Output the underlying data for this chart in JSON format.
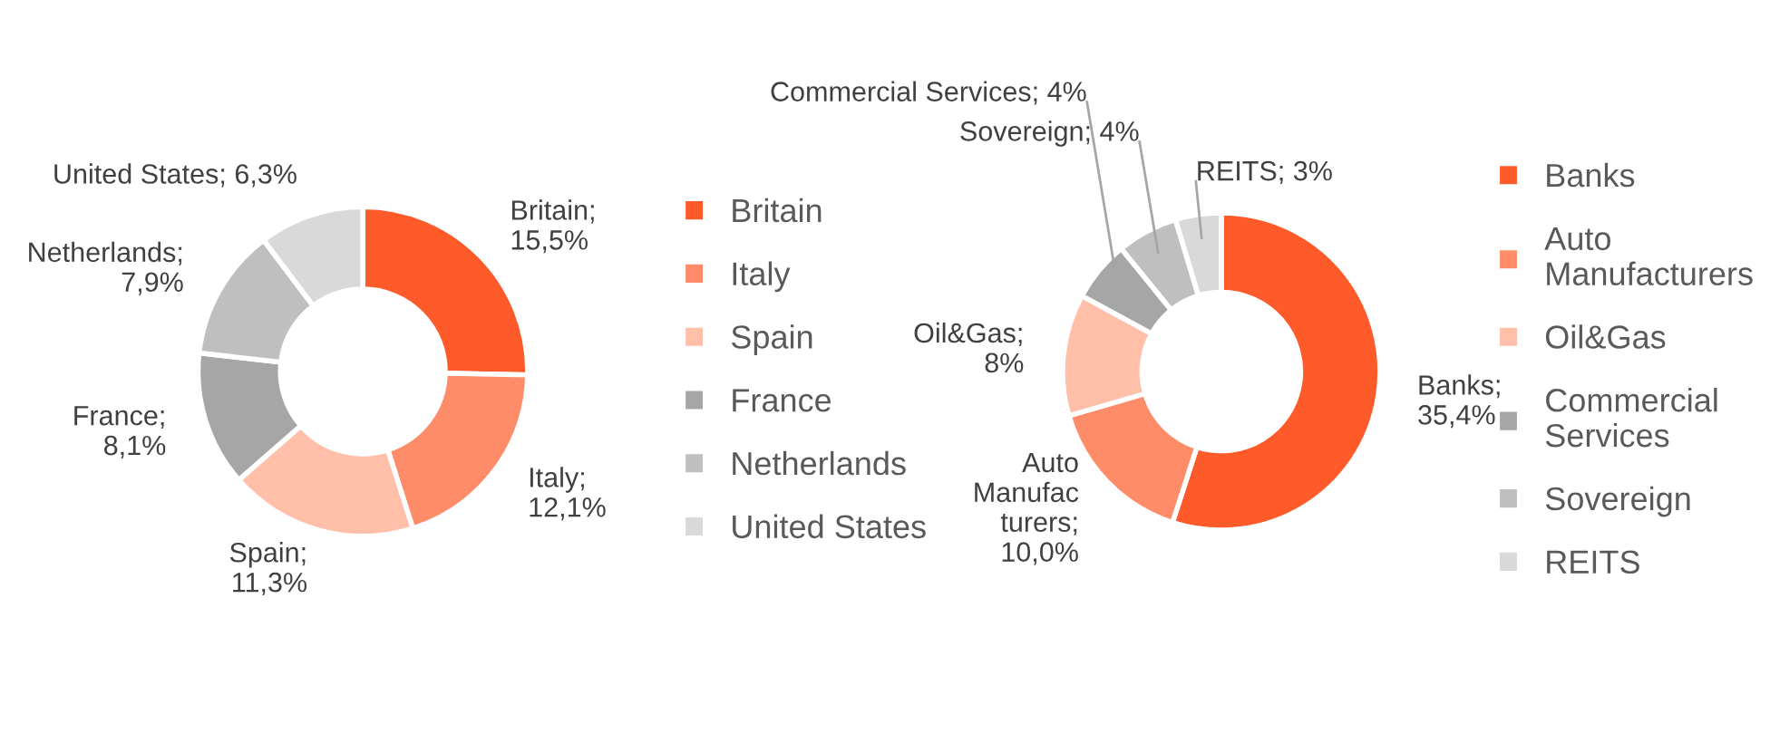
{
  "chart_data": [
    {
      "type": "donut",
      "categories": [
        "Britain",
        "Italy",
        "Spain",
        "France",
        "Netherlands",
        "United States"
      ],
      "values": [
        15.5,
        12.1,
        11.3,
        8.1,
        7.9,
        6.3
      ],
      "colors": [
        "#ff5a2a",
        "#ff8c69",
        "#ffbfa8",
        "#a6a6a6",
        "#bfbfbf",
        "#d9d9d9"
      ],
      "value_labels": [
        "Britain;\n15,5%",
        "Italy;\n12,1%",
        "Spain;\n11,3%",
        "France;\n8,1%",
        "Netherlands;\n7,9%",
        "United States; 6,3%"
      ],
      "legend": "right"
    },
    {
      "type": "donut",
      "categories": [
        "Banks",
        "Auto Manufacturers",
        "Oil&Gas",
        "Commercial Services",
        "Sovereign",
        "REITS"
      ],
      "values": [
        35.4,
        10.0,
        8,
        4,
        4,
        3
      ],
      "colors": [
        "#ff5a2a",
        "#ff8c69",
        "#ffbfa8",
        "#a6a6a6",
        "#bfbfbf",
        "#d9d9d9"
      ],
      "value_labels": [
        "Banks;\n35,4%",
        "Auto\nManufac\nturers;\n10,0%",
        "Oil&Gas;\n8%",
        "Commercial Services; 4%",
        "Sovereign; 4%",
        "REITS; 3%"
      ],
      "legend": "right"
    }
  ]
}
